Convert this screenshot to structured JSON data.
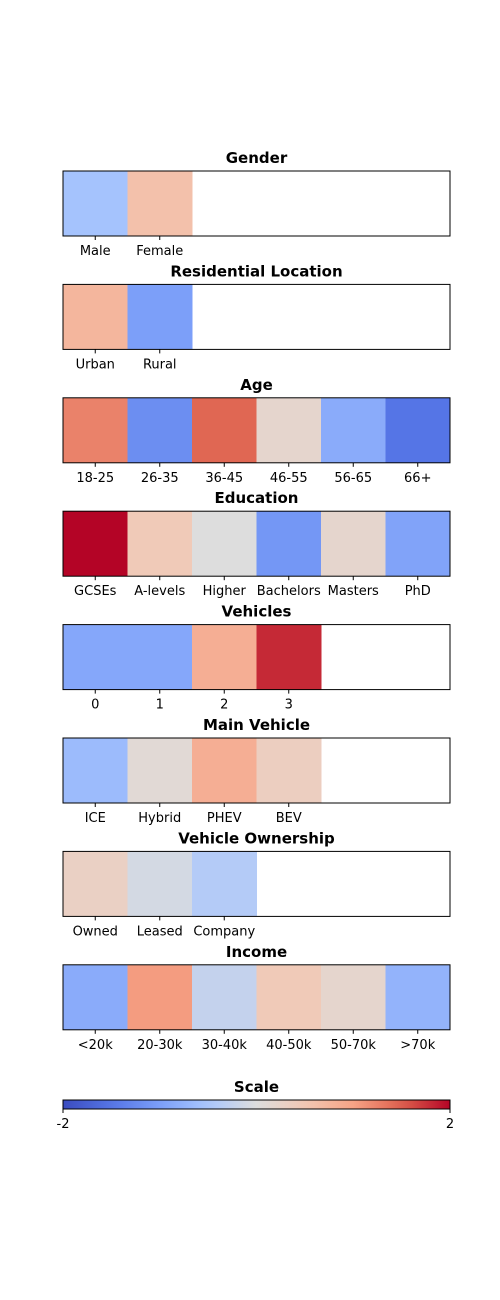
{
  "chart_data": [
    {
      "type": "heatmap",
      "title": "Gender",
      "categories": [
        "Male",
        "Female"
      ],
      "values": [
        -0.55,
        0.6
      ]
    },
    {
      "type": "heatmap",
      "title": "Residential Location",
      "categories": [
        "Urban",
        "Rural"
      ],
      "values": [
        0.75,
        -1.0
      ]
    },
    {
      "type": "heatmap",
      "title": "Age",
      "categories": [
        "18-25",
        "26-35",
        "36-45",
        "46-55",
        "56-65",
        "66+"
      ],
      "values": [
        1.25,
        -1.2,
        1.45,
        0.2,
        -0.85,
        -1.5
      ]
    },
    {
      "type": "heatmap",
      "title": "Education",
      "categories": [
        "GCSEs",
        "A-levels",
        "Higher",
        "Bachelors",
        "Masters",
        "PhD"
      ],
      "values": [
        2.0,
        0.45,
        0.0,
        -1.1,
        0.2,
        -0.95
      ]
    },
    {
      "type": "heatmap",
      "title": "Vehicles",
      "categories": [
        "0",
        "1",
        "2",
        "3"
      ],
      "values": [
        -0.9,
        -0.9,
        0.85,
        1.8
      ]
    },
    {
      "type": "heatmap",
      "title": "Main Vehicle",
      "categories": [
        "ICE",
        "Hybrid",
        "PHEV",
        "BEV"
      ],
      "values": [
        -0.65,
        0.1,
        0.85,
        0.35
      ]
    },
    {
      "type": "heatmap",
      "title": "Vehicle Ownership",
      "categories": [
        "Owned",
        "Leased",
        "Company"
      ],
      "values": [
        0.3,
        -0.1,
        -0.4
      ]
    },
    {
      "type": "heatmap",
      "title": "Income",
      "categories": [
        "<20k",
        "20-30k",
        "30-40k",
        "40-50k",
        "50-70k",
        ">70k"
      ],
      "values": [
        -0.85,
        1.05,
        -0.25,
        0.45,
        0.2,
        -0.75
      ]
    }
  ],
  "scale": {
    "title": "Scale",
    "min_label": "-2",
    "max_label": "2",
    "range": [
      -2,
      2
    ],
    "colormap": "coolwarm"
  }
}
